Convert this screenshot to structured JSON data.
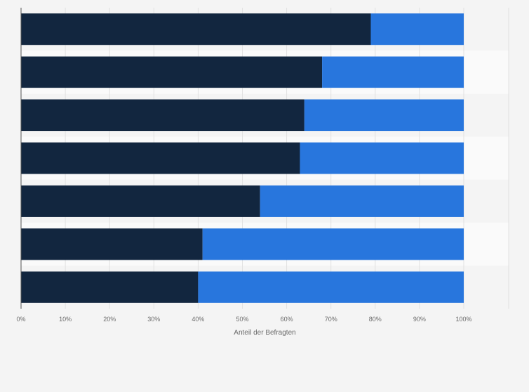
{
  "colors": {
    "series_dark": "#12263f",
    "series_blue": "#2876dd",
    "grid": "#e1e1e1",
    "band_light": "#fafafa",
    "background": "#f4f4f4",
    "axis": "#555555"
  },
  "chart_data": {
    "type": "bar",
    "orientation": "horizontal",
    "stacked": true,
    "categories": [
      "",
      "",
      "",
      "",
      "",
      "",
      ""
    ],
    "series": [
      {
        "values": [
          79,
          68,
          64,
          63,
          54,
          41,
          40
        ],
        "color": "#12263f"
      },
      {
        "values": [
          21,
          32,
          36,
          37,
          46,
          59,
          60
        ],
        "color": "#2876dd"
      }
    ],
    "xlabel": "Anteil der Befragten",
    "ylabel": "",
    "xlim": [
      0,
      100
    ],
    "xticks": [
      0,
      10,
      20,
      30,
      40,
      50,
      60,
      70,
      80,
      90,
      100
    ],
    "xtick_labels": [
      "0%",
      "10%",
      "20%",
      "30%",
      "40%",
      "50%",
      "60%",
      "70%",
      "80%",
      "90%",
      "100%"
    ],
    "grid": true,
    "legend": "none"
  }
}
